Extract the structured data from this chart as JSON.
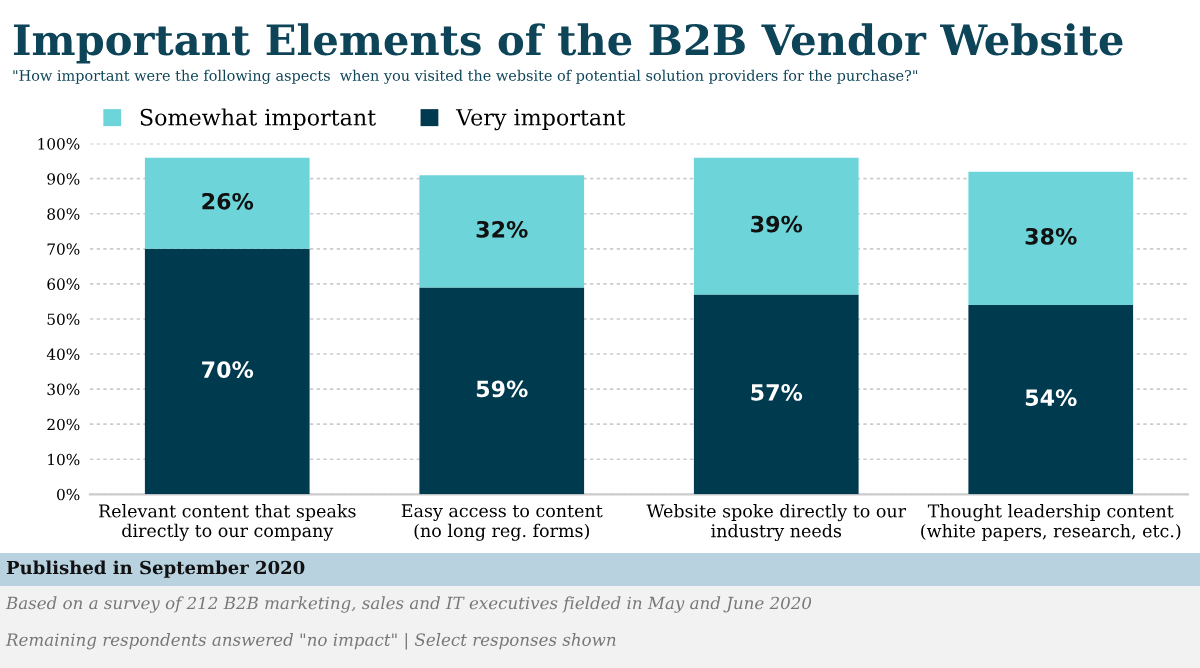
{
  "chart_data": {
    "type": "bar",
    "stacked": true,
    "title": "Important Elements of the B2B Vendor Website",
    "subtitle": "\"How important were the following aspects  when you visited the website of potential solution providers for the purchase?\"",
    "categories": [
      "Relevant content that speaks\ndirectly to our company",
      "Easy access to content\n(no long reg. forms)",
      "Website spoke directly to our\nindustry needs",
      "Thought leadership content\n(white papers, research, etc.)"
    ],
    "series": [
      {
        "name": "Very important",
        "color": "#003a4f",
        "values": [
          70,
          59,
          57,
          54
        ],
        "value_labels": [
          "70%",
          "59%",
          "57%",
          "54%"
        ]
      },
      {
        "name": "Somewhat important",
        "color": "#6dd5d9",
        "values": [
          26,
          32,
          39,
          38
        ],
        "value_labels": [
          "26%",
          "32%",
          "39%",
          "38%"
        ]
      }
    ],
    "ylim": [
      0,
      100
    ],
    "yticks": [
      {
        "value": 0,
        "label": "0%"
      },
      {
        "value": 10,
        "label": "10%"
      },
      {
        "value": 20,
        "label": "20%"
      },
      {
        "value": 30,
        "label": "30%"
      },
      {
        "value": 40,
        "label": "40%"
      },
      {
        "value": 50,
        "label": "50%"
      },
      {
        "value": 60,
        "label": "60%"
      },
      {
        "value": 70,
        "label": "70%"
      },
      {
        "value": 80,
        "label": "80%"
      },
      {
        "value": 90,
        "label": "90%"
      },
      {
        "value": 100,
        "label": "100%"
      }
    ],
    "grid": "y",
    "legend": "top left",
    "annotations": [
      "Published in September 2020",
      "Based on a survey of 212 B2B marketing, sales and IT executives fielded in May and June 2020",
      "Remaining respondents answered \"no impact\" | Select responses shown"
    ]
  }
}
